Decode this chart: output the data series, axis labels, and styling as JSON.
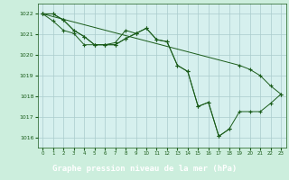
{
  "title": "Graphe pression niveau de la mer (hPa)",
  "bg_color": "#cceedd",
  "plot_bg_color": "#d6f0ee",
  "line_color": "#1a5c1a",
  "grid_color": "#aacccc",
  "footer_color": "#2a6b2a",
  "footer_text_color": "#ffffff",
  "hours": [
    0,
    1,
    2,
    3,
    4,
    5,
    6,
    7,
    8,
    9,
    10,
    11,
    12,
    13,
    14,
    15,
    16,
    17,
    18,
    19,
    20,
    21,
    22,
    23
  ],
  "series1": [
    1022.0,
    1022.0,
    1021.7,
    1021.2,
    1020.9,
    1020.5,
    1020.5,
    1020.5,
    1020.8,
    1021.05,
    1021.3,
    1020.75,
    1020.65,
    1019.5,
    1019.2,
    1017.5,
    1017.7,
    1016.05,
    1016.4,
    null,
    null,
    null,
    null,
    null
  ],
  "series2": [
    1022.0,
    1022.0,
    1021.7,
    1021.2,
    1020.9,
    1020.5,
    1020.5,
    1020.5,
    1020.8,
    1021.05,
    1021.3,
    1020.75,
    1020.65,
    1019.5,
    1019.2,
    1017.5,
    1017.7,
    1016.05,
    1016.4,
    1017.25,
    1017.25,
    1017.25,
    1017.65,
    1018.1
  ],
  "series3": [
    1022.0,
    null,
    null,
    null,
    null,
    null,
    null,
    null,
    null,
    null,
    null,
    null,
    null,
    null,
    null,
    null,
    null,
    null,
    null,
    1019.5,
    1019.3,
    1019.0,
    1018.5,
    1018.1
  ],
  "series4": [
    1022.0,
    1021.65,
    1021.2,
    1021.05,
    1020.5,
    1020.5,
    1020.5,
    1020.6,
    1021.2,
    1021.05,
    null,
    null,
    null,
    null,
    null,
    null,
    null,
    null,
    null,
    null,
    null,
    null,
    null,
    null
  ],
  "ylim": [
    1015.5,
    1022.5
  ],
  "yticks": [
    1016,
    1017,
    1018,
    1019,
    1020,
    1021,
    1022
  ],
  "xticks": [
    0,
    1,
    2,
    3,
    4,
    5,
    6,
    7,
    8,
    9,
    10,
    11,
    12,
    13,
    14,
    15,
    16,
    17,
    18,
    19,
    20,
    21,
    22,
    23
  ]
}
